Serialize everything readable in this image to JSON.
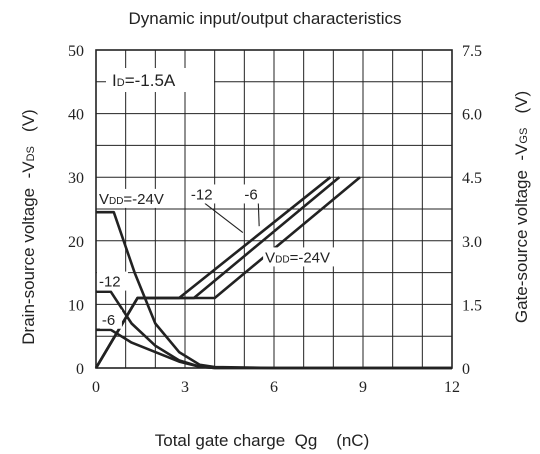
{
  "chart_data": {
    "type": "line",
    "title": "Dynamic input/output characteristics",
    "xlabel": "Total gate charge  Qg    (nC)",
    "ylabel_left": {
      "main": "Drain-source voltage  -V",
      "sub": "DS",
      "unit": "   (V)"
    },
    "ylabel_right": {
      "main": "Gate-source voltage  -V",
      "sub": "GS",
      "unit": "   (V)"
    },
    "xlim": [
      0,
      12
    ],
    "ylim_left": [
      0,
      50
    ],
    "ylim_right": [
      0,
      7.5
    ],
    "x_ticks": [
      "0",
      "3",
      "6",
      "9",
      "12"
    ],
    "y_left_ticks": [
      "0",
      "10",
      "20",
      "30",
      "40",
      "50"
    ],
    "y_right_ticks": [
      "0",
      "1.5",
      "3.0",
      "4.5",
      "6.0",
      "7.5"
    ],
    "x_grid_step": 1,
    "y_grid_step": 5,
    "grid": true,
    "condition": {
      "main": "I",
      "sub": "D",
      "rest": "=-1.5A"
    },
    "series": [
      {
        "name": "VDS, VDD=-24V",
        "axis": "left",
        "points": [
          [
            0,
            24.5
          ],
          [
            0.6,
            24.5
          ],
          [
            1.3,
            15
          ],
          [
            2.0,
            7
          ],
          [
            2.8,
            2.5
          ],
          [
            3.5,
            0.5
          ],
          [
            4.0,
            0.15
          ],
          [
            6,
            0
          ],
          [
            12,
            0
          ]
        ]
      },
      {
        "name": "VDS, VDD=-12",
        "axis": "left",
        "points": [
          [
            0,
            12
          ],
          [
            0.5,
            12
          ],
          [
            1.2,
            7
          ],
          [
            2.0,
            3.5
          ],
          [
            2.8,
            1.2
          ],
          [
            3.5,
            0.2
          ],
          [
            4.0,
            0
          ],
          [
            12,
            0
          ]
        ]
      },
      {
        "name": "VDS, VDD=-6",
        "axis": "left",
        "points": [
          [
            0,
            6
          ],
          [
            0.5,
            6
          ],
          [
            1.2,
            4
          ],
          [
            2.0,
            2.5
          ],
          [
            2.8,
            1
          ],
          [
            3.5,
            0.2
          ],
          [
            4.0,
            0
          ],
          [
            12,
            0
          ]
        ]
      },
      {
        "name": "VGS, VDD=-24V",
        "axis": "right",
        "points": [
          [
            0,
            0
          ],
          [
            1.4,
            1.65
          ],
          [
            4.0,
            1.65
          ],
          [
            8.9,
            4.5
          ]
        ]
      },
      {
        "name": "VGS, VDD=-12",
        "axis": "right",
        "points": [
          [
            0,
            0
          ],
          [
            1.4,
            1.65
          ],
          [
            3.3,
            1.65
          ],
          [
            8.2,
            4.5
          ]
        ]
      },
      {
        "name": "VGS, VDD=-6",
        "axis": "right",
        "points": [
          [
            0,
            0
          ],
          [
            1.4,
            1.65
          ],
          [
            2.8,
            1.65
          ],
          [
            7.9,
            4.5
          ]
        ]
      }
    ],
    "annotations": [
      {
        "id": "vdd24-left",
        "main": "V",
        "sub": "DD",
        "rest": "=-24V",
        "x": 0.1,
        "y": 25.8,
        "axis": "left"
      },
      {
        "id": "m12-left",
        "text": "-12",
        "x": 0.1,
        "y": 12.8,
        "axis": "left"
      },
      {
        "id": "m6-left",
        "text": "-6",
        "x": 0.2,
        "y": 6.8,
        "axis": "left"
      },
      {
        "id": "m12-right",
        "text": "-12",
        "x": 3.2,
        "y": 26.5,
        "axis": "left",
        "leader_to": [
          4.95,
          21.3
        ]
      },
      {
        "id": "m6-right",
        "text": "-6",
        "x": 5.0,
        "y": 26.5,
        "axis": "left",
        "leader_to": [
          5.5,
          22.3
        ]
      },
      {
        "id": "vdd24-right",
        "main": "V",
        "sub": "DD",
        "rest": "=-24V",
        "x": 5.7,
        "y": 16.6,
        "axis": "left"
      }
    ]
  }
}
